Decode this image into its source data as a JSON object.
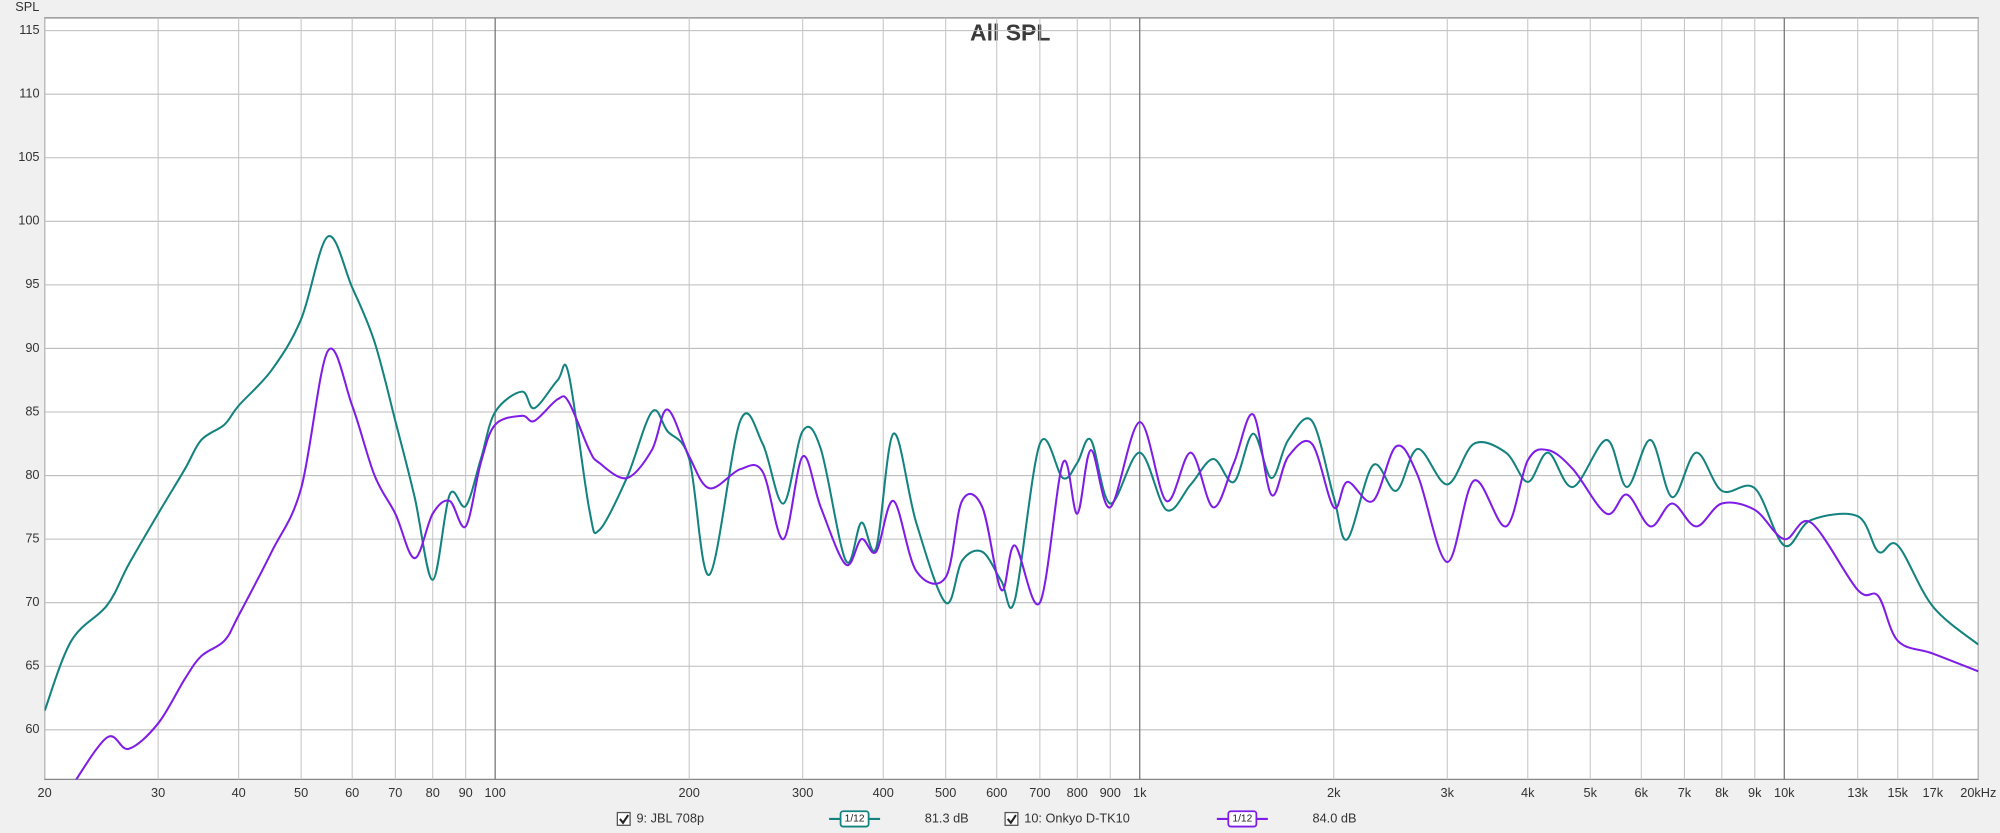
{
  "chart_data": {
    "type": "line",
    "title": "All SPL",
    "y_label": "SPL",
    "log_x": true,
    "grid": true,
    "xlim": [
      20,
      20000
    ],
    "ylim": [
      56.1,
      116
    ],
    "xticks": [
      20,
      30,
      40,
      50,
      60,
      70,
      80,
      90,
      100,
      200,
      300,
      400,
      500,
      600,
      700,
      800,
      900,
      {
        "value": 1000,
        "label": "1k"
      },
      {
        "value": 2000,
        "label": "2k"
      },
      {
        "value": 3000,
        "label": "3k"
      },
      {
        "value": 4000,
        "label": "4k"
      },
      {
        "value": 5000,
        "label": "5k"
      },
      {
        "value": 6000,
        "label": "6k"
      },
      {
        "value": 7000,
        "label": "7k"
      },
      {
        "value": 8000,
        "label": "8k"
      },
      {
        "value": 9000,
        "label": "9k"
      },
      {
        "value": 10000,
        "label": "10k"
      },
      {
        "value": 13000,
        "label": "13k"
      },
      {
        "value": 15000,
        "label": "15k"
      },
      {
        "value": 17000,
        "label": "17k"
      },
      {
        "value": 20000,
        "label": "20kHz"
      }
    ],
    "yticks": [
      60,
      65,
      70,
      75,
      80,
      85,
      90,
      95,
      100,
      105,
      110,
      115
    ],
    "x": [
      20,
      22,
      25,
      27,
      30,
      33,
      35,
      38,
      40,
      45,
      50,
      55,
      60,
      65,
      70,
      75,
      80,
      85,
      90,
      95,
      100,
      110,
      115,
      125,
      130,
      140,
      145,
      160,
      175,
      185,
      200,
      215,
      240,
      260,
      280,
      300,
      320,
      350,
      370,
      390,
      415,
      450,
      500,
      530,
      570,
      610,
      640,
      700,
      760,
      800,
      840,
      900,
      1000,
      1100,
      1200,
      1300,
      1400,
      1500,
      1600,
      1700,
      1850,
      2000,
      2100,
      2300,
      2500,
      2700,
      3000,
      3300,
      3700,
      4000,
      4300,
      4700,
      5300,
      5700,
      6200,
      6700,
      7300,
      8000,
      9000,
      10000,
      11000,
      13000,
      14000,
      15000,
      17000,
      20000
    ],
    "series": [
      {
        "name": "9: JBL 708p",
        "smoothing": "1/12",
        "level": "81.3 dB",
        "color": "#14837f",
        "values": [
          61.5,
          67,
          69.8,
          73,
          77,
          80.5,
          82.8,
          84,
          85.5,
          88.3,
          92.3,
          98.8,
          94.8,
          90.5,
          84.3,
          78.3,
          71.8,
          78.5,
          77.6,
          81.3,
          85,
          86.6,
          85.3,
          87.5,
          88,
          77.3,
          75.7,
          79.8,
          85,
          83.5,
          81.3,
          72.2,
          84.3,
          82.5,
          77.8,
          83.5,
          82.1,
          73.3,
          76.3,
          74.3,
          83.3,
          76.3,
          70,
          73.3,
          74,
          71.7,
          70.2,
          82.5,
          79.8,
          81,
          82.8,
          77.8,
          81.8,
          77.3,
          79.3,
          81.3,
          79.5,
          83.3,
          79.8,
          82.8,
          84.3,
          78.3,
          75,
          80.8,
          78.8,
          82.1,
          79.3,
          82.5,
          81.8,
          79.5,
          81.8,
          79.1,
          82.8,
          79.1,
          82.8,
          78.3,
          81.8,
          78.8,
          79,
          74.5,
          76.5,
          76.8,
          74,
          74.5,
          69.7,
          66.7
        ]
      },
      {
        "name": "10: Onkyo D-TK10",
        "smoothing": "1/12",
        "level": "84.0 dB",
        "color": "#7f1de6",
        "values": [
          null,
          55.5,
          59.4,
          58.5,
          60.5,
          64,
          65.8,
          67,
          69,
          74,
          79,
          89.8,
          85.5,
          80,
          77,
          73.5,
          77,
          78,
          76,
          81,
          84,
          84.7,
          84.3,
          86,
          85.8,
          82,
          81,
          79.8,
          82,
          85.2,
          81.5,
          79,
          80.5,
          80.3,
          75,
          81.5,
          77.5,
          73,
          75,
          74,
          78,
          72.5,
          72,
          78,
          77.5,
          71,
          74.5,
          70,
          81,
          77,
          82,
          77.5,
          84.2,
          78,
          81.8,
          77.5,
          81,
          84.8,
          78.5,
          81.5,
          82.5,
          77.5,
          79.5,
          78,
          82.3,
          80,
          73.2,
          79.6,
          76,
          81.2,
          82,
          80.5,
          77,
          78.5,
          76,
          77.8,
          76,
          77.8,
          77.3,
          75,
          76.3,
          71,
          70.5,
          67,
          66,
          64.6
        ]
      }
    ]
  }
}
